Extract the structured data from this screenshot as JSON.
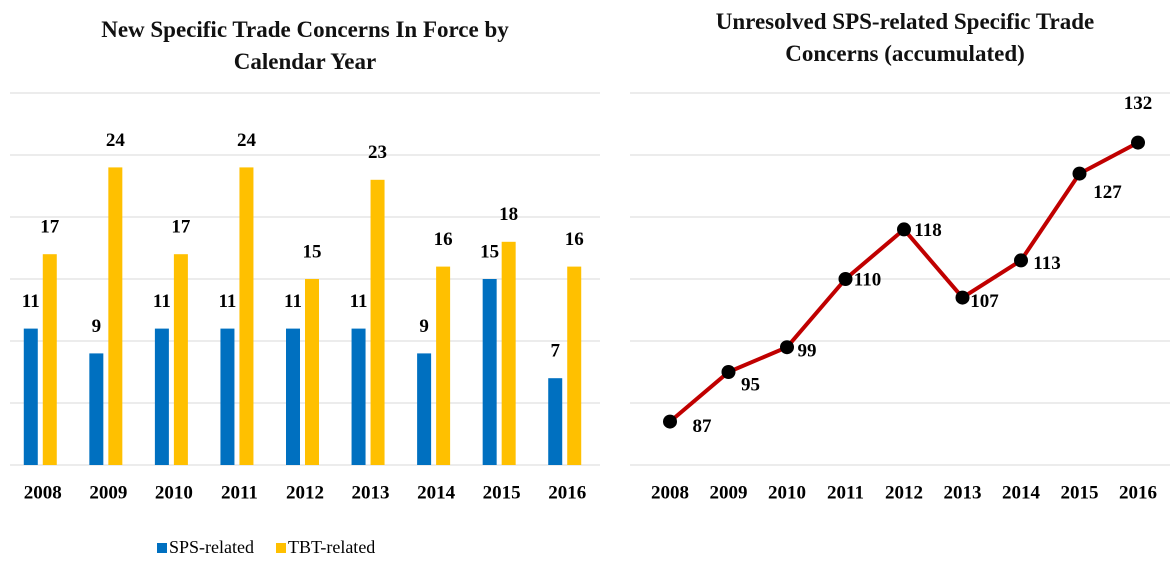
{
  "chart_data": [
    {
      "type": "bar",
      "title": "New Specific Trade Concerns In Force by Calendar Year",
      "categories": [
        "2008",
        "2009",
        "2010",
        "2011",
        "2012",
        "2013",
        "2014",
        "2015",
        "2016"
      ],
      "series": [
        {
          "name": "SPS-related",
          "color": "#0070c0",
          "values": [
            11,
            9,
            11,
            11,
            11,
            11,
            9,
            15,
            7
          ]
        },
        {
          "name": "TBT-related",
          "color": "#ffc000",
          "values": [
            17,
            24,
            17,
            24,
            15,
            23,
            16,
            18,
            16
          ]
        }
      ],
      "ylim": [
        0,
        30
      ],
      "yticks": [
        0,
        5,
        10,
        15,
        20,
        25,
        30
      ],
      "grid": true,
      "legend": "bottom"
    },
    {
      "type": "line",
      "title": "Unresolved SPS-related Specific Trade Concerns (accumulated)",
      "categories": [
        "2008",
        "2009",
        "2010",
        "2011",
        "2012",
        "2013",
        "2014",
        "2015",
        "2016"
      ],
      "series": [
        {
          "name": "SPS-related",
          "color": "#c00000",
          "values": [
            87,
            95,
            99,
            110,
            118,
            107,
            113,
            127,
            132
          ]
        }
      ],
      "ylim": [
        80,
        140
      ],
      "yticks": [
        80,
        90,
        100,
        110,
        120,
        130,
        140
      ],
      "grid": true
    }
  ]
}
